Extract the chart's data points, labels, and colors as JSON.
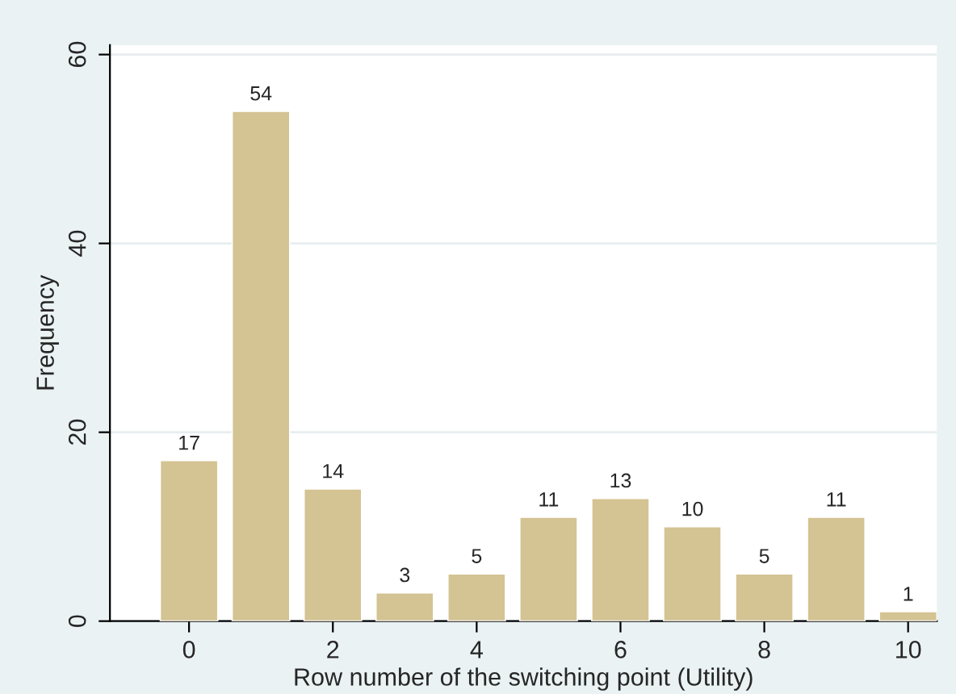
{
  "chart_data": {
    "type": "bar",
    "xlabel": "Row number of the switching point (Utility)",
    "ylabel": "Frequency",
    "x": [
      0,
      1,
      2,
      3,
      4,
      5,
      6,
      7,
      8,
      9,
      10
    ],
    "values": [
      17,
      54,
      14,
      3,
      5,
      11,
      13,
      10,
      5,
      11,
      1
    ],
    "color": "#d4c393",
    "xlim": [
      -1.1,
      10.4
    ],
    "xticks": [
      0,
      2,
      4,
      6,
      8,
      10
    ],
    "ylim": [
      0,
      61
    ],
    "yticks": [
      0,
      20,
      40,
      60
    ],
    "grid": "y",
    "data_labels": true
  }
}
